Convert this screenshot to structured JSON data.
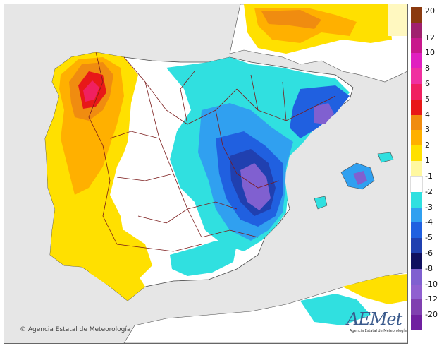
{
  "legend": {
    "labels": [
      "20",
      "12",
      "10",
      "8",
      "6",
      "5",
      "4",
      "3",
      "2",
      "1",
      "-1",
      "-2",
      "-3",
      "-4",
      "-5",
      "-6",
      "-8",
      "-10",
      "-12",
      "-20"
    ],
    "swatches": [
      {
        "color": "#8b3a0f"
      },
      {
        "color": "#a0206e"
      },
      {
        "color": "#c8188c"
      },
      {
        "color": "#e020c0"
      },
      {
        "color": "#f030a0"
      },
      {
        "color": "#f02060"
      },
      {
        "color": "#e81818"
      },
      {
        "color": "#f08c10"
      },
      {
        "color": "#ffb000"
      },
      {
        "color": "#ffe000"
      },
      {
        "color": "#fff8a0"
      },
      {
        "color": "#ffffff"
      },
      {
        "color": "#30e0e0"
      },
      {
        "color": "#30a0f0"
      },
      {
        "color": "#2060e0"
      },
      {
        "color": "#2040b0"
      },
      {
        "color": "#101060"
      },
      {
        "color": "#8060d0"
      },
      {
        "color": "#9060d0"
      },
      {
        "color": "#8040b0"
      },
      {
        "color": "#7020a0"
      }
    ]
  },
  "map": {
    "sea_color": "#e6e6e6",
    "land_color": "#ffffff",
    "border_color": "#7a1a1a",
    "coast_color": "#4a4a4a"
  },
  "footer": {
    "copyright_symbol": "©",
    "copyright_text": "Agencia Estatal de Meteorología"
  },
  "logo": {
    "word": "AEMet",
    "subtitle": "Agencia Estatal de Meteorología"
  }
}
